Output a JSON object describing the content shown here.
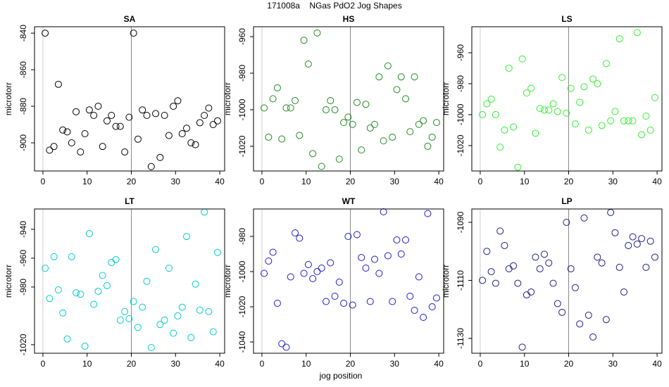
{
  "title": "171008a    NGas PdO2 Jog Shapes",
  "xlabel": "jog position",
  "chart_data": [
    {
      "type": "scatter",
      "title": "SA",
      "ylabel": "microtorr",
      "color": "#000000",
      "x": [
        0.5,
        1.5,
        2.5,
        3.5,
        4.5,
        5.5,
        6.5,
        7.5,
        8.5,
        9.5,
        10.5,
        11.5,
        12.5,
        13.5,
        14.5,
        15.5,
        16.5,
        17.5,
        18.5,
        19.5,
        20.5,
        21.5,
        22.5,
        23.5,
        24.5,
        25.5,
        26.5,
        27.5,
        28.5,
        29.5,
        30.5,
        31.5,
        32.5,
        33.5,
        34.5,
        35.5,
        36.5,
        37.5,
        38.5,
        39.5
      ],
      "values": [
        -840,
        -904,
        -902,
        -868,
        -893,
        -894,
        -900,
        -883,
        -905,
        -895,
        -882,
        -885,
        -880,
        -902,
        -888,
        -885,
        -891,
        -891,
        -905,
        -886,
        -840,
        -898,
        -882,
        -885,
        -913,
        -884,
        -908,
        -885,
        -896,
        -880,
        -877,
        -895,
        -892,
        -900,
        -901,
        -889,
        -885,
        -881,
        -890,
        -888
      ],
      "xlim": [
        -1.9,
        41.1
      ],
      "ylim": [
        -915.4,
        -836.5
      ],
      "xticks": [
        0,
        10,
        20,
        30,
        40
      ],
      "yticks": [
        -840,
        -860,
        -880,
        -900
      ],
      "vlines": [
        0,
        20
      ]
    },
    {
      "type": "scatter",
      "title": "HS",
      "ylabel": "microtorr",
      "color": "#228b22",
      "x": [
        0.5,
        1.5,
        2.5,
        3.5,
        4.5,
        5.5,
        6.5,
        7.5,
        8.5,
        9.5,
        10.5,
        11.5,
        12.5,
        13.5,
        14.5,
        15.5,
        16.5,
        17.5,
        18.5,
        19.5,
        20.5,
        21.5,
        22.5,
        23.5,
        24.5,
        25.5,
        26.5,
        27.5,
        28.5,
        29.5,
        30.5,
        31.5,
        32.5,
        33.5,
        34.5,
        35.5,
        36.5,
        37.5,
        38.5,
        39.5
      ],
      "values": [
        -999,
        -1015,
        -994,
        -988,
        -1016,
        -999,
        -999,
        -995,
        -1014,
        -962,
        -975,
        -1024,
        -958,
        -1031,
        -1000,
        -995,
        -1000,
        -1027,
        -1007,
        -1004,
        -1008,
        -996,
        -1022,
        -997,
        -1010,
        -1008,
        -982,
        -1017,
        -976,
        -1015,
        -989,
        -982,
        -994,
        -1012,
        -982,
        -1008,
        -1006,
        -1020,
        -1015,
        -1007
      ],
      "xlim": [
        -1.9,
        41.1
      ],
      "ylim": [
        -1033.5,
        -954.6
      ],
      "xticks": [
        0,
        10,
        20,
        30,
        40
      ],
      "yticks": [
        -960,
        -980,
        -1000,
        -1020
      ],
      "vlines": [
        0,
        20
      ]
    },
    {
      "type": "scatter",
      "title": "LS",
      "ylabel": "microtorr",
      "color": "#33ee33",
      "x": [
        0.5,
        1.5,
        2.5,
        3.5,
        4.5,
        5.5,
        6.5,
        7.5,
        8.5,
        9.5,
        10.5,
        11.5,
        12.5,
        13.5,
        14.5,
        15.5,
        16.5,
        17.5,
        18.5,
        19.5,
        20.5,
        21.5,
        22.5,
        23.5,
        24.5,
        25.5,
        26.5,
        27.5,
        28.5,
        29.5,
        30.5,
        31.5,
        32.5,
        33.5,
        34.5,
        35.5,
        36.5,
        37.5,
        38.5,
        39.5
      ],
      "values": [
        -1000,
        -993,
        -990,
        -1000,
        -1021,
        -1010,
        -970,
        -1008,
        -1034,
        -964,
        -986,
        -983,
        -1012,
        -996,
        -997,
        -997,
        -993,
        -998,
        -976,
        -999,
        -983,
        -1006,
        -992,
        -982,
        -1010,
        -977,
        -980,
        -1007,
        -967,
        -1004,
        -998,
        -951,
        -1004,
        -1004,
        -1004,
        -947,
        -1013,
        -1001,
        -1010,
        -989
      ],
      "xlim": [
        -1.9,
        41.1
      ],
      "ylim": [
        -1036.4,
        -943.2
      ],
      "xticks": [
        0,
        10,
        20,
        30,
        40
      ],
      "yticks": [
        -960,
        -980,
        -1000,
        -1020
      ],
      "vlines": [
        0,
        20
      ]
    },
    {
      "type": "scatter",
      "title": "LT",
      "ylabel": "microtorr",
      "color": "#00cccc",
      "x": [
        0.5,
        1.5,
        2.5,
        3.5,
        4.5,
        5.5,
        6.5,
        7.5,
        8.5,
        9.5,
        10.5,
        11.5,
        12.5,
        13.5,
        14.5,
        15.5,
        16.5,
        17.5,
        18.5,
        19.5,
        20.5,
        21.5,
        22.5,
        23.5,
        24.5,
        25.5,
        26.5,
        27.5,
        28.5,
        29.5,
        30.5,
        31.5,
        32.5,
        33.5,
        34.5,
        35.5,
        36.5,
        37.5,
        38.5,
        39.5
      ],
      "values": [
        -967,
        -988,
        -959,
        -982,
        -998,
        -1016,
        -959,
        -984,
        -985,
        -1021,
        -943,
        -992,
        -983,
        -972,
        -979,
        -963,
        -961,
        -1003,
        -997,
        -1002,
        -990,
        -1008,
        -994,
        -976,
        -1022,
        -954,
        -1006,
        -1003,
        -967,
        -1012,
        -1000,
        -994,
        -945,
        -1015,
        -978,
        -996,
        -928,
        -997,
        -1011,
        -956
      ],
      "xlim": [
        -1.9,
        41.1
      ],
      "ylim": [
        -1025.9,
        -925.9
      ],
      "xticks": [
        0,
        10,
        20,
        30,
        40
      ],
      "yticks": [
        -940,
        -960,
        -980,
        -1020
      ],
      "vlines": [
        0,
        20
      ]
    },
    {
      "type": "scatter",
      "title": "WT",
      "ylabel": "microtorr",
      "color": "#1a1acc",
      "x": [
        0.5,
        1.5,
        2.5,
        3.5,
        4.5,
        5.5,
        6.5,
        7.5,
        8.5,
        9.5,
        10.5,
        11.5,
        12.5,
        13.5,
        14.5,
        15.5,
        16.5,
        17.5,
        18.5,
        19.5,
        20.5,
        21.5,
        22.5,
        23.5,
        24.5,
        25.5,
        26.5,
        27.5,
        28.5,
        29.5,
        30.5,
        31.5,
        32.5,
        33.5,
        34.5,
        35.5,
        36.5,
        37.5,
        38.5,
        39.5
      ],
      "values": [
        -1001,
        -994,
        -989,
        -1018,
        -1041,
        -1043,
        -1003,
        -978,
        -981,
        -1001,
        -996,
        -1004,
        -1000,
        -998,
        -1017,
        -995,
        -1014,
        -1006,
        -1018,
        -980,
        -1019,
        -979,
        -992,
        -998,
        -1017,
        -993,
        -1001,
        -966,
        -991,
        -1017,
        -982,
        -990,
        -982,
        -1014,
        -1022,
        -1003,
        -1026,
        -967,
        -1020,
        -1015
      ],
      "xlim": [
        -1.9,
        41.1
      ],
      "ylim": [
        -1046.4,
        -964.4
      ],
      "xticks": [
        0,
        10,
        20,
        30,
        40
      ],
      "yticks": [
        -980,
        -1000,
        -1020,
        -1040
      ],
      "vlines": [
        0,
        20
      ]
    },
    {
      "type": "scatter",
      "title": "LP",
      "ylabel": "microtorr",
      "color": "#202080",
      "x": [
        0.5,
        1.5,
        2.5,
        3.5,
        4.5,
        5.5,
        6.5,
        7.5,
        8.5,
        9.5,
        10.5,
        11.5,
        12.5,
        13.5,
        14.5,
        15.5,
        16.5,
        17.5,
        18.5,
        19.5,
        20.5,
        21.5,
        22.5,
        23.5,
        24.5,
        25.5,
        26.5,
        27.5,
        28.5,
        29.5,
        30.5,
        31.5,
        32.5,
        33.5,
        34.5,
        35.5,
        36.5,
        37.5,
        38.5,
        39.5
      ],
      "values": [
        -1110,
        -1100,
        -1107,
        -1111,
        -1093,
        -1098,
        -1106,
        -1105,
        -1111,
        -1133,
        -1115,
        -1114,
        -1102,
        -1106,
        -1101,
        -1104,
        -1111,
        -1118,
        -1121,
        -1090,
        -1106,
        -1112.5,
        -1125,
        -1088.5,
        -1122,
        -1129.5,
        -1102,
        -1104,
        -1123.5,
        -1086.6,
        -1093.6,
        -1105.5,
        -1114,
        -1098,
        -1095,
        -1097.5,
        -1095.6,
        -1105.5,
        -1096.5,
        -1102
      ],
      "xlim": [
        -1.9,
        41.1
      ],
      "ylim": [
        -1135.1,
        -1085.4
      ],
      "xticks": [
        0,
        10,
        20,
        30,
        40
      ],
      "yticks": [
        -1090,
        -1110,
        -1130
      ],
      "vlines": [
        0,
        20
      ]
    }
  ]
}
